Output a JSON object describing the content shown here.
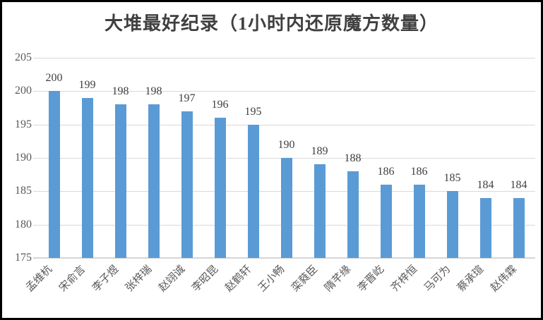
{
  "frame": {
    "background": "#ffffff",
    "border_color": "#000000"
  },
  "chart_data": {
    "type": "bar",
    "title": "大堆最好纪录（1小时内还原魔方数量）",
    "categories": [
      "孟维杭",
      "宋俞言",
      "李子煜",
      "张梓瑞",
      "赵翊诚",
      "李昭昆",
      "赵鹤轩",
      "王小畅",
      "栾蕤臣",
      "隋芊缘",
      "李晋屹",
      "齐梓恒",
      "马可为",
      "蔡承瑄",
      "赵伟霖"
    ],
    "values": [
      200,
      199,
      198,
      198,
      197,
      196,
      195,
      190,
      189,
      188,
      186,
      186,
      185,
      184,
      184
    ],
    "xlabel": "",
    "ylabel": "",
    "ylim": [
      175,
      205
    ],
    "yticks": [
      175,
      180,
      185,
      190,
      195,
      200,
      205
    ],
    "grid": true,
    "legend": false,
    "data_labels": true,
    "x_tick_rotation_deg": 45,
    "bar_color": "#5b9bd5",
    "gridline_color": "#d9d9d9",
    "axis_line_color": "#d5d5d5",
    "title_color": "#404040",
    "data_label_color": "#404040",
    "tick_label_color": "#595959"
  }
}
